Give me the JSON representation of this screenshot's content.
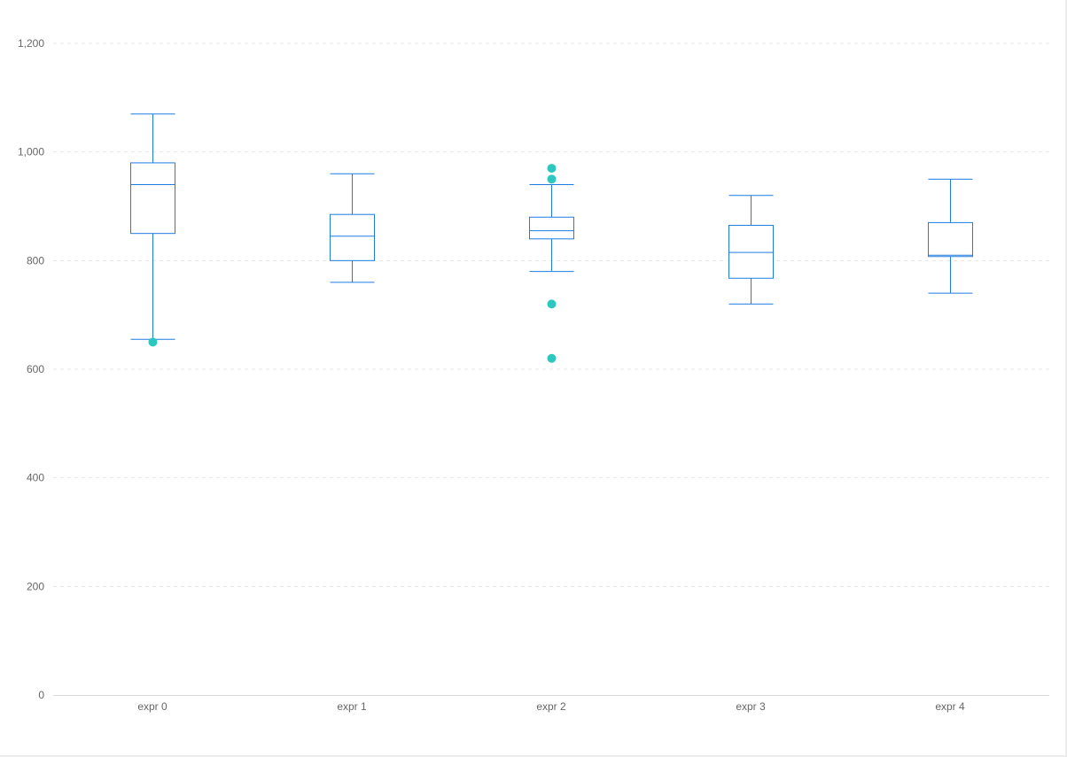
{
  "chart_data": {
    "type": "boxplot",
    "title": "",
    "xlabel": "",
    "ylabel": "",
    "ylim": [
      0,
      1200
    ],
    "yticks": [
      0,
      200,
      400,
      600,
      800,
      1000,
      1200
    ],
    "ytick_labels": [
      "0",
      "200",
      "400",
      "600",
      "800",
      "1,000",
      "1,200"
    ],
    "grid": true,
    "categories": [
      "expr 0",
      "expr 1",
      "expr 2",
      "expr 3",
      "expr 4"
    ],
    "boxes": [
      {
        "min": 655,
        "q1": 850,
        "median": 940,
        "q3": 980,
        "max": 1070
      },
      {
        "min": 760,
        "q1": 800,
        "median": 845,
        "q3": 885,
        "max": 960
      },
      {
        "min": 780,
        "q1": 840,
        "median": 855,
        "q3": 880,
        "max": 940
      },
      {
        "min": 720,
        "q1": 767.5,
        "median": 815,
        "q3": 865,
        "max": 920
      },
      {
        "min": 740,
        "q1": 807.5,
        "median": 810,
        "q3": 870,
        "max": 950
      }
    ],
    "outliers": [
      {
        "category": "expr 0",
        "value": 650
      },
      {
        "category": "expr 2",
        "value": 970
      },
      {
        "category": "expr 2",
        "value": 950
      },
      {
        "category": "expr 2",
        "value": 720
      },
      {
        "category": "expr 2",
        "value": 620
      }
    ],
    "colors": {
      "box": "#1f7be0",
      "outlier": "#2ec7c0",
      "grid": "#e6e6e6",
      "axis": "#d9d9d9"
    }
  }
}
